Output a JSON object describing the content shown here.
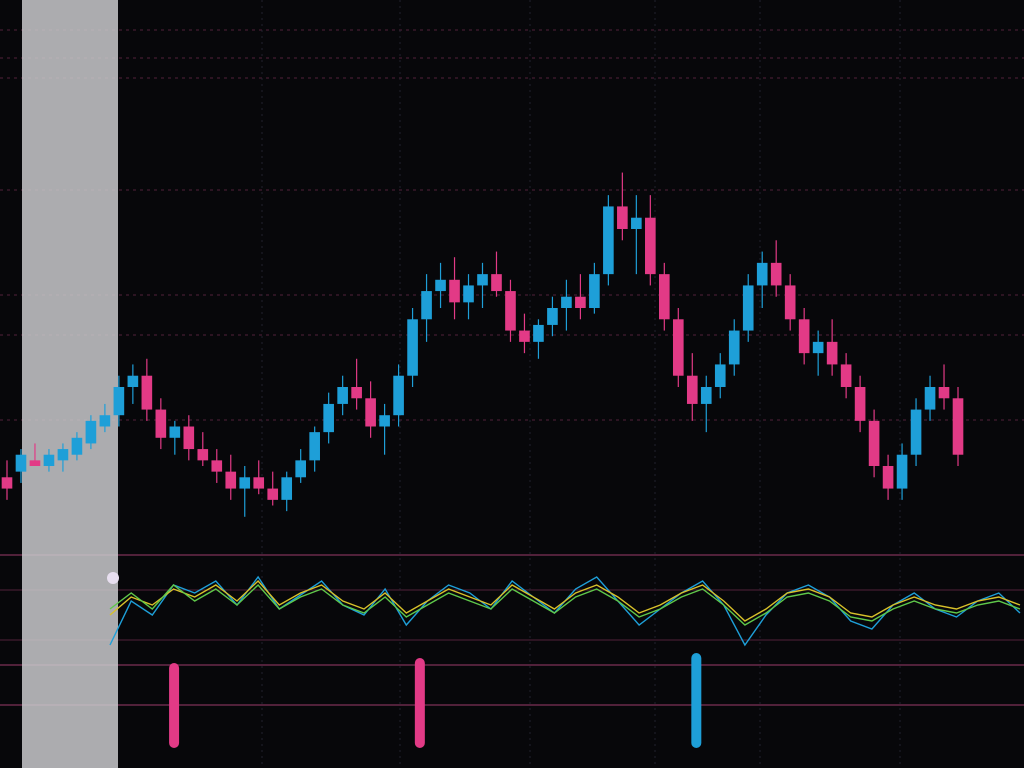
{
  "colors": {
    "background": "#07070a",
    "bull": "#1e9fd8",
    "bear": "#e23a86",
    "grid_h": "#6a2a4a",
    "grid_v": "#2a2a36",
    "panel": "#c9c9cd",
    "osc_blue": "#1e9fd8",
    "osc_yellow": "#d8c12a",
    "osc_orange": "#e0662a",
    "osc_green": "#5fc84a",
    "osc_red": "#d04a3a"
  },
  "chart_data": {
    "type": "candlestick",
    "ylim": [
      0,
      100
    ],
    "candles": [
      {
        "o": 42,
        "h": 45,
        "l": 38,
        "c": 40
      },
      {
        "o": 43,
        "h": 47,
        "l": 41,
        "c": 46
      },
      {
        "o": 45,
        "h": 48,
        "l": 44,
        "c": 44
      },
      {
        "o": 44,
        "h": 47,
        "l": 43,
        "c": 46
      },
      {
        "o": 45,
        "h": 48,
        "l": 43,
        "c": 47
      },
      {
        "o": 46,
        "h": 50,
        "l": 45,
        "c": 49
      },
      {
        "o": 48,
        "h": 53,
        "l": 47,
        "c": 52
      },
      {
        "o": 51,
        "h": 55,
        "l": 50,
        "c": 53
      },
      {
        "o": 53,
        "h": 60,
        "l": 51,
        "c": 58
      },
      {
        "o": 58,
        "h": 62,
        "l": 55,
        "c": 60
      },
      {
        "o": 60,
        "h": 63,
        "l": 52,
        "c": 54
      },
      {
        "o": 54,
        "h": 56,
        "l": 47,
        "c": 49
      },
      {
        "o": 49,
        "h": 52,
        "l": 46,
        "c": 51
      },
      {
        "o": 51,
        "h": 53,
        "l": 45,
        "c": 47
      },
      {
        "o": 47,
        "h": 50,
        "l": 44,
        "c": 45
      },
      {
        "o": 45,
        "h": 47,
        "l": 41,
        "c": 43
      },
      {
        "o": 43,
        "h": 46,
        "l": 38,
        "c": 40
      },
      {
        "o": 40,
        "h": 44,
        "l": 35,
        "c": 42
      },
      {
        "o": 42,
        "h": 45,
        "l": 39,
        "c": 40
      },
      {
        "o": 40,
        "h": 43,
        "l": 37,
        "c": 38
      },
      {
        "o": 38,
        "h": 43,
        "l": 36,
        "c": 42
      },
      {
        "o": 42,
        "h": 47,
        "l": 41,
        "c": 45
      },
      {
        "o": 45,
        "h": 51,
        "l": 43,
        "c": 50
      },
      {
        "o": 50,
        "h": 57,
        "l": 48,
        "c": 55
      },
      {
        "o": 55,
        "h": 60,
        "l": 53,
        "c": 58
      },
      {
        "o": 58,
        "h": 63,
        "l": 54,
        "c": 56
      },
      {
        "o": 56,
        "h": 59,
        "l": 49,
        "c": 51
      },
      {
        "o": 51,
        "h": 55,
        "l": 46,
        "c": 53
      },
      {
        "o": 53,
        "h": 62,
        "l": 51,
        "c": 60
      },
      {
        "o": 60,
        "h": 72,
        "l": 58,
        "c": 70
      },
      {
        "o": 70,
        "h": 78,
        "l": 66,
        "c": 75
      },
      {
        "o": 75,
        "h": 80,
        "l": 72,
        "c": 77
      },
      {
        "o": 77,
        "h": 81,
        "l": 70,
        "c": 73
      },
      {
        "o": 73,
        "h": 78,
        "l": 70,
        "c": 76
      },
      {
        "o": 76,
        "h": 80,
        "l": 72,
        "c": 78
      },
      {
        "o": 78,
        "h": 82,
        "l": 74,
        "c": 75
      },
      {
        "o": 75,
        "h": 77,
        "l": 66,
        "c": 68
      },
      {
        "o": 68,
        "h": 71,
        "l": 64,
        "c": 66
      },
      {
        "o": 66,
        "h": 70,
        "l": 63,
        "c": 69
      },
      {
        "o": 69,
        "h": 74,
        "l": 67,
        "c": 72
      },
      {
        "o": 72,
        "h": 77,
        "l": 68,
        "c": 74
      },
      {
        "o": 74,
        "h": 78,
        "l": 70,
        "c": 72
      },
      {
        "o": 72,
        "h": 80,
        "l": 71,
        "c": 78
      },
      {
        "o": 78,
        "h": 92,
        "l": 76,
        "c": 90
      },
      {
        "o": 90,
        "h": 96,
        "l": 84,
        "c": 86
      },
      {
        "o": 86,
        "h": 92,
        "l": 78,
        "c": 88
      },
      {
        "o": 88,
        "h": 92,
        "l": 76,
        "c": 78
      },
      {
        "o": 78,
        "h": 80,
        "l": 68,
        "c": 70
      },
      {
        "o": 70,
        "h": 72,
        "l": 58,
        "c": 60
      },
      {
        "o": 60,
        "h": 64,
        "l": 52,
        "c": 55
      },
      {
        "o": 55,
        "h": 60,
        "l": 50,
        "c": 58
      },
      {
        "o": 58,
        "h": 64,
        "l": 56,
        "c": 62
      },
      {
        "o": 62,
        "h": 70,
        "l": 60,
        "c": 68
      },
      {
        "o": 68,
        "h": 78,
        "l": 66,
        "c": 76
      },
      {
        "o": 76,
        "h": 82,
        "l": 72,
        "c": 80
      },
      {
        "o": 80,
        "h": 84,
        "l": 74,
        "c": 76
      },
      {
        "o": 76,
        "h": 78,
        "l": 68,
        "c": 70
      },
      {
        "o": 70,
        "h": 72,
        "l": 62,
        "c": 64
      },
      {
        "o": 64,
        "h": 68,
        "l": 60,
        "c": 66
      },
      {
        "o": 66,
        "h": 70,
        "l": 60,
        "c": 62
      },
      {
        "o": 62,
        "h": 64,
        "l": 56,
        "c": 58
      },
      {
        "o": 58,
        "h": 60,
        "l": 50,
        "c": 52
      },
      {
        "o": 52,
        "h": 54,
        "l": 42,
        "c": 44
      },
      {
        "o": 44,
        "h": 46,
        "l": 38,
        "c": 40
      },
      {
        "o": 40,
        "h": 48,
        "l": 38,
        "c": 46
      },
      {
        "o": 46,
        "h": 56,
        "l": 44,
        "c": 54
      },
      {
        "o": 54,
        "h": 60,
        "l": 52,
        "c": 58
      },
      {
        "o": 58,
        "h": 62,
        "l": 54,
        "c": 56
      },
      {
        "o": 56,
        "h": 58,
        "l": 44,
        "c": 46
      }
    ],
    "oscillators": [
      {
        "color_key": "osc_blue",
        "values": [
          40,
          62,
          55,
          70,
          66,
          72,
          60,
          74,
          58,
          65,
          72,
          60,
          55,
          68,
          50,
          62,
          70,
          66,
          58,
          72,
          64,
          56,
          68,
          74,
          62,
          50,
          58,
          66,
          72,
          60,
          40,
          55,
          66,
          70,
          64,
          52,
          48,
          60,
          66,
          58,
          54,
          62,
          66,
          56
        ]
      },
      {
        "color_key": "osc_yellow",
        "values": [
          55,
          64,
          60,
          68,
          64,
          70,
          62,
          72,
          60,
          66,
          70,
          62,
          58,
          66,
          56,
          62,
          68,
          64,
          60,
          70,
          64,
          58,
          66,
          70,
          64,
          56,
          60,
          66,
          70,
          62,
          52,
          58,
          66,
          68,
          64,
          56,
          54,
          60,
          64,
          60,
          58,
          62,
          64,
          60
        ]
      },
      {
        "color_key": "osc_green",
        "values": [
          58,
          66,
          58,
          70,
          62,
          68,
          60,
          70,
          58,
          64,
          68,
          60,
          56,
          64,
          54,
          60,
          66,
          62,
          58,
          68,
          62,
          56,
          64,
          68,
          62,
          54,
          58,
          64,
          68,
          60,
          50,
          56,
          64,
          66,
          62,
          54,
          52,
          58,
          62,
          58,
          56,
          60,
          62,
          58
        ]
      }
    ],
    "volume": [
      {
        "index": 0.17,
        "value": 0.85,
        "color_key": "bear"
      },
      {
        "index": 0.41,
        "value": 0.9,
        "color_key": "bear"
      },
      {
        "index": 0.68,
        "value": 0.95,
        "color_key": "bull"
      }
    ]
  }
}
